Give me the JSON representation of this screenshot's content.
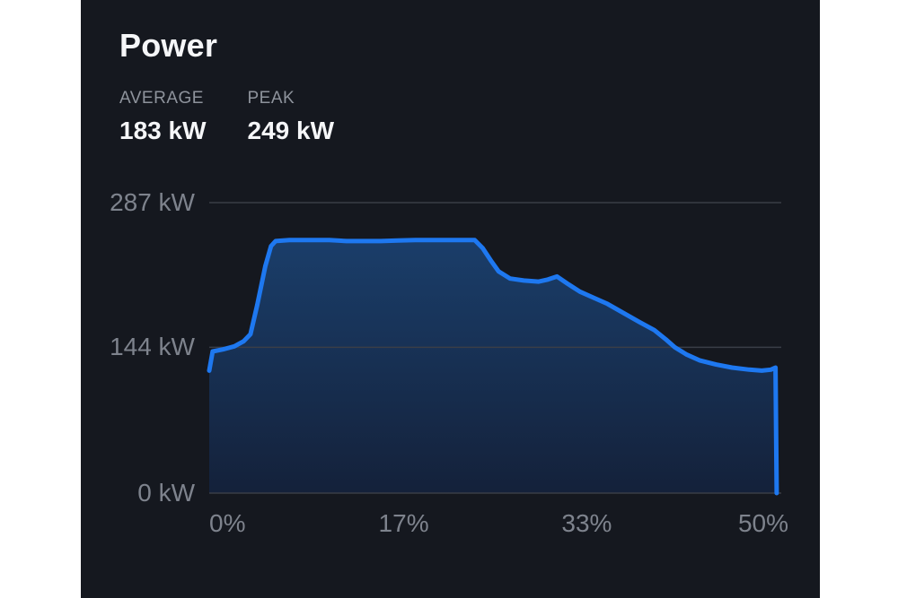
{
  "card": {
    "title": "Power",
    "stats": [
      {
        "label": "AVERAGE",
        "value": "183 kW"
      },
      {
        "label": "PEAK",
        "value": "249 kW"
      }
    ]
  },
  "chart_data": {
    "type": "area",
    "title": "Power",
    "x_unit": "%",
    "y_unit": "kW",
    "xlim": [
      0,
      50
    ],
    "ylim": [
      0,
      287
    ],
    "grid": "horizontal",
    "legend": false,
    "yticks": [
      {
        "value": 287,
        "label": "287 kW"
      },
      {
        "value": 144,
        "label": "144 kW"
      },
      {
        "value": 0,
        "label": "0 kW"
      }
    ],
    "xticks": [
      {
        "value": 0,
        "label": "0%"
      },
      {
        "value": 17,
        "label": "17%"
      },
      {
        "value": 33,
        "label": "33%"
      },
      {
        "value": 50,
        "label": "50%"
      }
    ],
    "series": [
      {
        "name": "Power",
        "points": [
          [
            0,
            121
          ],
          [
            0.3,
            140
          ],
          [
            1.2,
            142
          ],
          [
            2.2,
            145
          ],
          [
            3.0,
            150
          ],
          [
            3.6,
            157
          ],
          [
            4.2,
            186
          ],
          [
            4.9,
            224
          ],
          [
            5.4,
            244
          ],
          [
            5.8,
            249
          ],
          [
            7,
            250
          ],
          [
            9,
            250
          ],
          [
            10.5,
            250
          ],
          [
            12,
            249
          ],
          [
            13.5,
            249
          ],
          [
            15,
            249
          ],
          [
            16.5,
            249.5
          ],
          [
            18,
            250
          ],
          [
            19.5,
            250
          ],
          [
            21,
            250
          ],
          [
            22.3,
            250
          ],
          [
            23.2,
            250
          ],
          [
            23.9,
            242
          ],
          [
            24.6,
            230
          ],
          [
            25.3,
            219
          ],
          [
            26.3,
            212
          ],
          [
            27.5,
            210
          ],
          [
            28.8,
            209
          ],
          [
            29.6,
            211
          ],
          [
            30.4,
            214
          ],
          [
            31.3,
            207
          ],
          [
            32.4,
            199
          ],
          [
            33.6,
            193
          ],
          [
            34.8,
            187
          ],
          [
            36.2,
            178
          ],
          [
            37.6,
            169
          ],
          [
            38.9,
            161
          ],
          [
            39.9,
            152
          ],
          [
            40.7,
            144
          ],
          [
            41.7,
            137
          ],
          [
            42.9,
            131
          ],
          [
            44.3,
            127
          ],
          [
            45.7,
            124
          ],
          [
            47.2,
            122
          ],
          [
            48.3,
            121
          ],
          [
            49.1,
            122
          ],
          [
            49.5,
            124
          ],
          [
            49.6,
            0
          ]
        ]
      }
    ],
    "colors": {
      "line": "#1e78f0",
      "fill_top": "#1b4271",
      "fill_bottom": "#14213a",
      "grid": "#3a3e47",
      "panel_bg": "#15181f",
      "text_primary": "#f5f6f8",
      "text_secondary": "#8e939c",
      "axis_label": "#7e838d"
    }
  }
}
